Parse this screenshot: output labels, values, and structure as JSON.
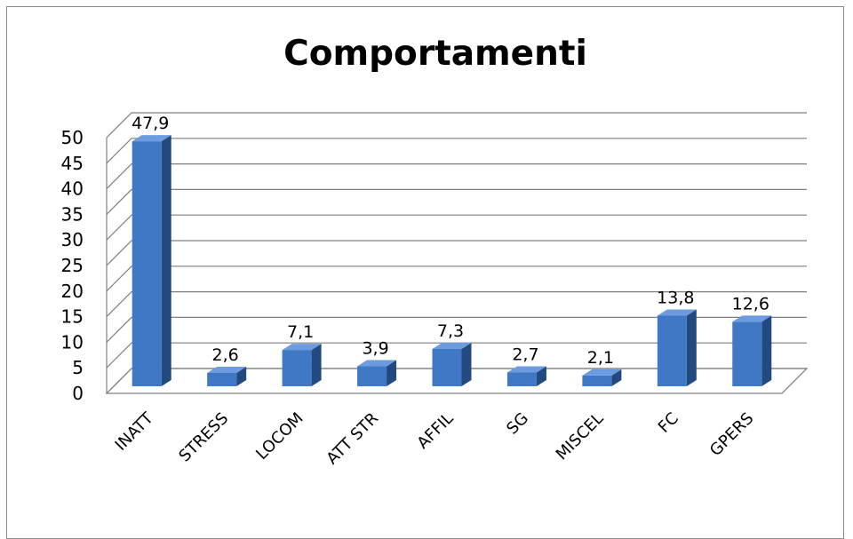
{
  "chart_data": {
    "type": "bar",
    "title": "Comportamenti",
    "categories": [
      "INATT",
      "STRESS",
      "LOCOM",
      "ATT STR",
      "AFFIL",
      "SG",
      "MISCEL",
      "FC",
      "GPERS"
    ],
    "values": [
      47.9,
      2.6,
      7.1,
      3.9,
      7.3,
      2.7,
      2.1,
      13.8,
      12.6
    ],
    "data_labels": [
      "47,9",
      "2,6",
      "7,1",
      "3,9",
      "7,3",
      "2,7",
      "2,1",
      "13,8",
      "12,6"
    ],
    "y_ticks": [
      "0",
      "5",
      "10",
      "15",
      "20",
      "25",
      "30",
      "35",
      "40",
      "45",
      "50"
    ],
    "ylim": [
      0,
      50
    ],
    "xlabel": "",
    "ylabel": "",
    "grid": true,
    "legend": "none",
    "style": "3d-column",
    "colors": {
      "bar_front": "#3f78c4",
      "bar_side": "#234a80",
      "bar_top": "#6d9be0",
      "grid": "#7f7f7f",
      "frame": "#8c8c8c"
    }
  }
}
